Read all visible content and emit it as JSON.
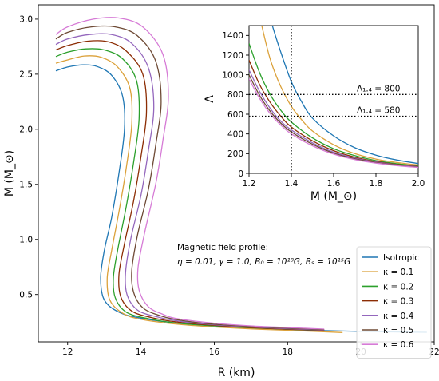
{
  "chart_data": [
    {
      "type": "line",
      "xlabel": "R (km)",
      "ylabel": "M (M_⊙)",
      "xlim": [
        11.2,
        22
      ],
      "ylim": [
        0.07,
        3.13
      ],
      "xticks": [
        "12",
        "14",
        "16",
        "18",
        "20",
        "22"
      ],
      "yticks": [
        "0.5",
        "1.0",
        "1.5",
        "2.0",
        "2.5",
        "3.0"
      ],
      "grid": false,
      "legend_position": "bottom-right",
      "annotation": {
        "line1": "Magnetic field profile:",
        "line2": "η = 0.01, γ = 1.0, B₀ = 10¹⁸G, Bₛ = 10¹⁵G"
      },
      "series": [
        {
          "name": "Isotropic",
          "color": "#1f77b4",
          "points": [
            [
              11.68,
              2.53
            ],
            [
              12.0,
              2.565
            ],
            [
              12.4,
              2.585
            ],
            [
              12.8,
              2.57
            ],
            [
              13.2,
              2.49
            ],
            [
              13.5,
              2.3
            ],
            [
              13.55,
              2.0
            ],
            [
              13.4,
              1.6
            ],
            [
              13.2,
              1.2
            ],
            [
              13.0,
              0.9
            ],
            [
              12.9,
              0.65
            ],
            [
              13.0,
              0.45
            ],
            [
              13.4,
              0.34
            ],
            [
              14.0,
              0.285
            ],
            [
              15.0,
              0.24
            ],
            [
              16.0,
              0.215
            ],
            [
              17.0,
              0.195
            ],
            [
              18.0,
              0.18
            ],
            [
              19.0,
              0.172
            ],
            [
              20.0,
              0.165
            ],
            [
              21.0,
              0.16
            ],
            [
              21.8,
              0.157
            ]
          ]
        },
        {
          "name": "κ = 0.1",
          "color": "#dba13a",
          "points": [
            [
              11.68,
              2.6
            ],
            [
              12.0,
              2.63
            ],
            [
              12.45,
              2.665
            ],
            [
              12.9,
              2.655
            ],
            [
              13.35,
              2.57
            ],
            [
              13.7,
              2.37
            ],
            [
              13.75,
              2.05
            ],
            [
              13.6,
              1.65
            ],
            [
              13.4,
              1.25
            ],
            [
              13.2,
              0.9
            ],
            [
              13.08,
              0.65
            ],
            [
              13.15,
              0.45
            ],
            [
              13.5,
              0.33
            ],
            [
              14.0,
              0.275
            ],
            [
              15.0,
              0.23
            ],
            [
              16.0,
              0.205
            ],
            [
              17.0,
              0.188
            ],
            [
              18.0,
              0.175
            ],
            [
              19.5,
              0.155
            ]
          ]
        },
        {
          "name": "κ = 0.2",
          "color": "#2ca02c",
          "points": [
            [
              11.68,
              2.66
            ],
            [
              12.0,
              2.7
            ],
            [
              12.5,
              2.73
            ],
            [
              13.0,
              2.72
            ],
            [
              13.5,
              2.64
            ],
            [
              13.88,
              2.44
            ],
            [
              13.95,
              2.1
            ],
            [
              13.8,
              1.7
            ],
            [
              13.6,
              1.3
            ],
            [
              13.38,
              0.93
            ],
            [
              13.25,
              0.66
            ],
            [
              13.3,
              0.47
            ],
            [
              13.6,
              0.34
            ],
            [
              14.2,
              0.28
            ],
            [
              15.0,
              0.24
            ],
            [
              16.0,
              0.215
            ],
            [
              17.0,
              0.198
            ],
            [
              18.0,
              0.185
            ],
            [
              19.0,
              0.172
            ]
          ]
        },
        {
          "name": "κ = 0.3",
          "color": "#8c2d04",
          "points": [
            [
              11.68,
              2.72
            ],
            [
              12.0,
              2.76
            ],
            [
              12.55,
              2.8
            ],
            [
              13.1,
              2.795
            ],
            [
              13.6,
              2.71
            ],
            [
              14.05,
              2.5
            ],
            [
              14.15,
              2.15
            ],
            [
              14.0,
              1.75
            ],
            [
              13.8,
              1.35
            ],
            [
              13.55,
              0.96
            ],
            [
              13.4,
              0.68
            ],
            [
              13.45,
              0.48
            ],
            [
              13.75,
              0.35
            ],
            [
              14.3,
              0.29
            ],
            [
              15.0,
              0.25
            ],
            [
              16.0,
              0.22
            ],
            [
              17.0,
              0.2
            ],
            [
              18.0,
              0.185
            ],
            [
              19.0,
              0.175
            ]
          ]
        },
        {
          "name": "κ = 0.4",
          "color": "#9467bd",
          "points": [
            [
              11.68,
              2.77
            ],
            [
              12.0,
              2.82
            ],
            [
              12.6,
              2.86
            ],
            [
              13.2,
              2.86
            ],
            [
              13.75,
              2.78
            ],
            [
              14.2,
              2.56
            ],
            [
              14.35,
              2.2
            ],
            [
              14.2,
              1.8
            ],
            [
              14.0,
              1.4
            ],
            [
              13.72,
              1.0
            ],
            [
              13.58,
              0.7
            ],
            [
              13.62,
              0.5
            ],
            [
              13.9,
              0.36
            ],
            [
              14.4,
              0.3
            ],
            [
              15.0,
              0.26
            ],
            [
              16.0,
              0.225
            ],
            [
              17.0,
              0.205
            ],
            [
              18.0,
              0.19
            ],
            [
              19.0,
              0.178
            ]
          ]
        },
        {
          "name": "κ = 0.5",
          "color": "#6e4a35",
          "points": [
            [
              11.68,
              2.82
            ],
            [
              12.0,
              2.88
            ],
            [
              12.65,
              2.93
            ],
            [
              13.3,
              2.93
            ],
            [
              13.9,
              2.85
            ],
            [
              14.4,
              2.62
            ],
            [
              14.55,
              2.25
            ],
            [
              14.4,
              1.85
            ],
            [
              14.2,
              1.45
            ],
            [
              13.9,
              1.03
            ],
            [
              13.75,
              0.72
            ],
            [
              13.8,
              0.52
            ],
            [
              14.05,
              0.38
            ],
            [
              14.5,
              0.31
            ],
            [
              15.0,
              0.27
            ],
            [
              16.0,
              0.23
            ],
            [
              17.0,
              0.21
            ],
            [
              18.0,
              0.195
            ],
            [
              19.0,
              0.182
            ]
          ]
        },
        {
          "name": "κ = 0.6",
          "color": "#d67bd6",
          "points": [
            [
              11.68,
              2.86
            ],
            [
              12.0,
              2.93
            ],
            [
              12.7,
              3.0
            ],
            [
              13.4,
              3.01
            ],
            [
              14.05,
              2.93
            ],
            [
              14.6,
              2.68
            ],
            [
              14.75,
              2.3
            ],
            [
              14.6,
              1.9
            ],
            [
              14.4,
              1.5
            ],
            [
              14.1,
              1.06
            ],
            [
              13.92,
              0.74
            ],
            [
              13.95,
              0.54
            ],
            [
              14.2,
              0.39
            ],
            [
              14.6,
              0.32
            ],
            [
              15.0,
              0.28
            ],
            [
              16.0,
              0.24
            ],
            [
              17.0,
              0.215
            ],
            [
              18.0,
              0.2
            ],
            [
              19.0,
              0.186
            ]
          ]
        }
      ]
    },
    {
      "type": "line",
      "xlabel": "M (M_⊙)",
      "ylabel": "Λ",
      "xlim": [
        1.2,
        2.0
      ],
      "ylim": [
        0,
        1500
      ],
      "xticks": [
        "1.2",
        "1.4",
        "1.6",
        "1.8",
        "2.0"
      ],
      "yticks": [
        "0",
        "200",
        "400",
        "600",
        "800",
        "1000",
        "1200",
        "1400"
      ],
      "grid": false,
      "reference_lines": [
        {
          "orientation": "vertical",
          "value": 1.4
        },
        {
          "orientation": "horizontal",
          "value": 800,
          "label": "Λ₁.₄ = 800"
        },
        {
          "orientation": "horizontal",
          "value": 580,
          "label": "Λ₁.₄ = 580"
        }
      ],
      "series": [
        {
          "name": "Isotropic",
          "color": "#1f77b4",
          "points": [
            [
              1.31,
              1500
            ],
            [
              1.35,
              1230
            ],
            [
              1.4,
              930
            ],
            [
              1.45,
              720
            ],
            [
              1.5,
              560
            ],
            [
              1.6,
              380
            ],
            [
              1.7,
              260
            ],
            [
              1.8,
              185
            ],
            [
              1.9,
              135
            ],
            [
              2.0,
              100
            ]
          ]
        },
        {
          "name": "κ = 0.1",
          "color": "#dba13a",
          "points": [
            [
              1.26,
              1500
            ],
            [
              1.3,
              1160
            ],
            [
              1.35,
              880
            ],
            [
              1.4,
              680
            ],
            [
              1.45,
              540
            ],
            [
              1.5,
              430
            ],
            [
              1.6,
              290
            ],
            [
              1.7,
              200
            ],
            [
              1.8,
              145
            ],
            [
              1.9,
              110
            ],
            [
              2.0,
              85
            ]
          ]
        },
        {
          "name": "κ = 0.2",
          "color": "#2ca02c",
          "points": [
            [
              1.2,
              1320
            ],
            [
              1.25,
              1020
            ],
            [
              1.3,
              800
            ],
            [
              1.35,
              640
            ],
            [
              1.4,
              520
            ],
            [
              1.5,
              360
            ],
            [
              1.6,
              250
            ],
            [
              1.7,
              180
            ],
            [
              1.8,
              130
            ],
            [
              1.9,
              98
            ],
            [
              2.0,
              75
            ]
          ]
        },
        {
          "name": "κ = 0.3",
          "color": "#8c2d04",
          "points": [
            [
              1.2,
              1150
            ],
            [
              1.25,
              900
            ],
            [
              1.3,
              720
            ],
            [
              1.35,
              580
            ],
            [
              1.4,
              470
            ],
            [
              1.5,
              330
            ],
            [
              1.6,
              230
            ],
            [
              1.7,
              165
            ],
            [
              1.8,
              120
            ],
            [
              1.9,
              90
            ],
            [
              2.0,
              70
            ]
          ]
        },
        {
          "name": "κ = 0.4",
          "color": "#9467bd",
          "points": [
            [
              1.2,
              1050
            ],
            [
              1.25,
              830
            ],
            [
              1.3,
              660
            ],
            [
              1.35,
              530
            ],
            [
              1.4,
              440
            ],
            [
              1.5,
              310
            ],
            [
              1.6,
              215
            ],
            [
              1.7,
              155
            ],
            [
              1.8,
              115
            ],
            [
              1.9,
              86
            ],
            [
              2.0,
              66
            ]
          ]
        },
        {
          "name": "κ = 0.5",
          "color": "#6e4a35",
          "points": [
            [
              1.2,
              1000
            ],
            [
              1.25,
              790
            ],
            [
              1.3,
              630
            ],
            [
              1.35,
              510
            ],
            [
              1.4,
              420
            ],
            [
              1.5,
              295
            ],
            [
              1.6,
              205
            ],
            [
              1.7,
              148
            ],
            [
              1.8,
              110
            ],
            [
              1.9,
              82
            ],
            [
              2.0,
              63
            ]
          ]
        },
        {
          "name": "κ = 0.6",
          "color": "#d67bd6",
          "points": [
            [
              1.2,
              960
            ],
            [
              1.25,
              760
            ],
            [
              1.3,
              605
            ],
            [
              1.35,
              490
            ],
            [
              1.4,
              400
            ],
            [
              1.5,
              280
            ],
            [
              1.6,
              195
            ],
            [
              1.7,
              140
            ],
            [
              1.8,
              104
            ],
            [
              1.9,
              78
            ],
            [
              2.0,
              60
            ]
          ]
        }
      ]
    }
  ]
}
